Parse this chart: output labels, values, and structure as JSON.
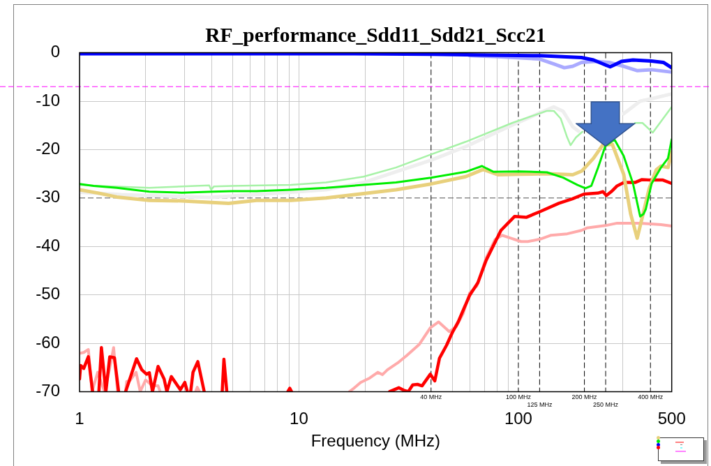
{
  "chart_data": {
    "type": "line",
    "title": "RF_performance_Sdd11_Sdd21_Scc21",
    "xlabel": "Frequency (MHz)",
    "log": "x",
    "grid": true,
    "xlim": [
      1,
      500
    ],
    "ylim": [
      -70,
      0
    ],
    "xticks": [
      1,
      {
        "value": 2,
        "label": null
      },
      {
        "value": 3,
        "label": null
      },
      {
        "value": 4,
        "label": null
      },
      {
        "value": 5,
        "label": null
      },
      {
        "value": 6,
        "label": null
      },
      {
        "value": 7,
        "label": null
      },
      {
        "value": 8,
        "label": null
      },
      {
        "value": 9,
        "label": null
      },
      10,
      {
        "value": 20,
        "label": null
      },
      {
        "value": 30,
        "label": null
      },
      {
        "value": 50,
        "label": null
      },
      {
        "value": 60,
        "label": null
      },
      {
        "value": 70,
        "label": null
      },
      {
        "value": 80,
        "label": null
      },
      {
        "value": 90,
        "label": null
      },
      100,
      {
        "value": 300,
        "label": null
      },
      500
    ],
    "yticks": [
      0,
      -10,
      -20,
      -30,
      -40,
      -50,
      -60,
      -70
    ],
    "ref_lines": [
      {
        "axis": "x",
        "value": 40,
        "label": "40 MHz",
        "color": "#000000",
        "line_style": "dashed"
      },
      {
        "axis": "x",
        "value": 100,
        "label": "100 MHz",
        "color": "#000000",
        "line_style": "dashed"
      },
      {
        "axis": "x",
        "value": 125,
        "label": "125 MHz",
        "color": "#000000",
        "line_style": "dashed"
      },
      {
        "axis": "x",
        "value": 200,
        "label": "200 MHz",
        "color": "#000000",
        "line_style": "dashed"
      },
      {
        "axis": "x",
        "value": 250,
        "label": "250 MHz",
        "color": "#000000",
        "line_style": "dashed"
      },
      {
        "axis": "x",
        "value": 400,
        "label": "400 MHz",
        "color": "#000000",
        "line_style": "dashed"
      },
      {
        "axis": "y",
        "value": -30,
        "color": "#505050",
        "line_style": "dashed"
      },
      {
        "axis": "y",
        "value": -7,
        "color": "#ff00ff",
        "line_style": "dashed"
      }
    ],
    "series": [
      {
        "color": "#eeeeee",
        "x": [
          1,
          1.55,
          3.9,
          8.1,
          13.3,
          19.7,
          40,
          57.5,
          100.8,
          145,
          160,
          177,
          188,
          250,
          302,
          359,
          405,
          500
        ],
        "values": [
          -28.8,
          -29.3,
          -29.9,
          -29.0,
          -28.3,
          -26.8,
          -22.2,
          -19.4,
          -14.3,
          -11.2,
          -12.1,
          -15.3,
          -16.2,
          null,
          -12.6,
          -10.0,
          -9.5,
          -8.5
        ]
      },
      {
        "color": "#a6f2a6",
        "x": [
          1,
          1.22,
          2.08,
          3.9,
          3.98,
          4.1,
          5.0,
          9.2,
          13.3,
          19.7,
          27.7,
          40,
          57.5,
          93.7,
          135,
          145,
          156,
          167,
          173,
          183,
          196,
          250,
          340,
          368,
          410,
          500
        ],
        "values": [
          -27.3,
          -27.5,
          -27.9,
          -27.4,
          -28.3,
          -27.6,
          -27.5,
          -27.3,
          -26.8,
          -25.6,
          -23.7,
          -21.0,
          -18.4,
          -14.5,
          -12.0,
          -12.0,
          -13.6,
          -17.5,
          -19.1,
          -17.5,
          -16.3,
          null,
          -14.5,
          -14.5,
          -16.5,
          -11.2
        ]
      },
      {
        "color": "#aaaaff",
        "x": [
          60,
          80.7,
          125,
          145,
          162,
          177,
          194,
          225,
          259,
          302,
          349,
          404,
          500
        ],
        "values": [
          -0.6,
          -0.8,
          -1.3,
          -2.3,
          -3.1,
          -2.8,
          -2.0,
          -1.8,
          -2.0,
          -2.8,
          -3.7,
          -3.5,
          -4.0
        ]
      },
      {
        "color": "#ffaaaa",
        "x": [
          1.0,
          1.045,
          1.097,
          1.14,
          1.21,
          1.3,
          1.36,
          1.43,
          1.49,
          1.57,
          1.62,
          1.64,
          1.7,
          1.81,
          1.89,
          2.0,
          2.15,
          2.28,
          2.33,
          2.8,
          3.38,
          3.44,
          3.52,
          8,
          17,
          17.8,
          19.1,
          21.0,
          22.9,
          24.0,
          25.3,
          28.5,
          30.9,
          35.4,
          39.7,
          43.3,
          48.4,
          52.1,
          56.0,
          60.0,
          64.6,
          71.3,
          78.3,
          84.3,
          90.8,
          102.8,
          110.5,
          125.7,
          141,
          167,
          194,
          205,
          249,
          282,
          359,
          447,
          500
        ],
        "values": [
          -62.1,
          -61.9,
          -61.3,
          -70,
          -66.0,
          -70,
          -66.0,
          -60.9,
          -70,
          null,
          -70,
          -67.9,
          -67.7,
          -66.0,
          -70,
          -67.6,
          -68.8,
          -68.8,
          -70,
          null,
          -70,
          -69.1,
          -70,
          null,
          -70,
          -69.3,
          -68.1,
          -67.2,
          -66.0,
          -66.5,
          -65.5,
          -63.9,
          -62.6,
          -60.2,
          -56.8,
          -55.6,
          -57.6,
          -56.6,
          -53.9,
          -49.6,
          -48.2,
          -42.4,
          -38.6,
          -37.7,
          -38.2,
          -39.0,
          -39.0,
          -38.5,
          -37.7,
          -37.4,
          -36.7,
          -36.2,
          -35.7,
          -35.2,
          -35.2,
          -35.5,
          -35.8
        ]
      },
      {
        "color": "#ff0000",
        "x": [
          1.0,
          1.012,
          1.045,
          1.097,
          1.147,
          1.18,
          1.225,
          1.258,
          1.318,
          1.373,
          1.442,
          1.507,
          1.56,
          1.622,
          1.819,
          1.923,
          2.02,
          2.08,
          2.15,
          2.28,
          2.43,
          2.5,
          2.62,
          2.88,
          3.02,
          3.1,
          3.15,
          3.21,
          3.29,
          3.46,
          3.7,
          4.0,
          4.47,
          4.55,
          4.69,
          6.0,
          8.9,
          9.08,
          9.25,
          15,
          25.9,
          28.5,
          30.0,
          31.5,
          33.0,
          34.7,
          36.4,
          39.7,
          41.6,
          43.7,
          47.1,
          50.0,
          53.2,
          56.5,
          60.0,
          65.4,
          71.3,
          77.6,
          83.3,
          96.2,
          108.6,
          125.7,
          153,
          176,
          199,
          230,
          243,
          252,
          268,
          282,
          303,
          340,
          366,
          403,
          456,
          500
        ],
        "values": [
          -67.4,
          -64.6,
          -65.2,
          -62.8,
          -70,
          null,
          -70,
          -60.9,
          -70,
          -62.8,
          -63.0,
          -70,
          null,
          -70,
          -63.2,
          -65.5,
          -66.4,
          -66.1,
          -70,
          -64.8,
          -67.4,
          -70,
          -66.9,
          -69.6,
          -68.1,
          -70,
          null,
          -70,
          -66.0,
          -63.8,
          -70,
          null,
          -70,
          -63.3,
          -70,
          null,
          -70,
          -69.3,
          -70,
          null,
          -70,
          -69.2,
          -69.7,
          -70,
          -68.6,
          -68.5,
          -68.8,
          -66.4,
          -67.8,
          -63.1,
          -60.4,
          -57.8,
          -55.6,
          -52.8,
          -50.1,
          -47.5,
          -42.9,
          -39.5,
          -36.7,
          -33.8,
          -34.0,
          -32.8,
          -31.1,
          -30.2,
          -29.2,
          -29.0,
          -28.7,
          -29.5,
          -28.5,
          -27.5,
          -26.8,
          -26.8,
          -26.2,
          -26.3,
          -26.3,
          -27.0
        ]
      },
      {
        "color": "#e8d07c",
        "x": [
          1,
          1.22,
          1.48,
          2.08,
          2.93,
          4.78,
          6.4,
          9.2,
          13.3,
          19.7,
          27.7,
          40,
          57.5,
          69.1,
          80.7,
          100.8,
          135,
          177,
          195,
          220,
          242,
          268,
          302,
          325,
          348,
          368,
          395,
          425,
          447,
          481,
          500
        ],
        "values": [
          -28.3,
          -29.0,
          -29.8,
          -30.5,
          -30.6,
          -31.1,
          -30.5,
          -30.5,
          -30.0,
          -29.1,
          -28.3,
          -27.1,
          -25.6,
          -24.1,
          -25.2,
          -25.1,
          -25.0,
          -25.2,
          -24.4,
          -21.8,
          -19.1,
          -18.9,
          -25.1,
          -33.3,
          -38.3,
          -33.8,
          -28.0,
          -24.2,
          -23.4,
          -23.7,
          -20.5
        ]
      },
      {
        "color": "#00ee00",
        "x": [
          1,
          1.16,
          1.48,
          2.08,
          2.93,
          4.03,
          5.0,
          6.4,
          9.2,
          13.3,
          19.7,
          27.7,
          40,
          57.5,
          68.3,
          71.7,
          77.1,
          100.8,
          135,
          160,
          186,
          202,
          215,
          231,
          249,
          274,
          302,
          333,
          359,
          372,
          381,
          405,
          447,
          481,
          500
        ],
        "values": [
          -27.1,
          -27.5,
          -27.9,
          -28.7,
          -28.9,
          -28.7,
          -28.6,
          -28.6,
          -28.3,
          -27.9,
          -27.3,
          -26.8,
          -25.8,
          -24.6,
          -23.4,
          -23.9,
          -24.6,
          -24.5,
          -24.7,
          -25.8,
          -27.3,
          -28.0,
          -27.5,
          -23.7,
          -19.3,
          -17.9,
          -21.3,
          -27.0,
          -33.8,
          -33.3,
          -32.3,
          -27.0,
          -23.7,
          -21.8,
          -17.9
        ]
      },
      {
        "color": "#0000ff",
        "x": [
          1,
          10,
          17,
          40,
          73.4,
          125,
          194,
          220,
          249,
          262,
          274,
          295,
          333,
          404,
          458,
          500
        ],
        "values": [
          -0.2,
          -0.2,
          -0.2,
          -0.3,
          -0.5,
          -0.6,
          -1.0,
          -1.5,
          -2.5,
          -2.9,
          -2.5,
          -1.8,
          -1.5,
          -1.7,
          -2.0,
          -3.1
        ]
      }
    ]
  }
}
